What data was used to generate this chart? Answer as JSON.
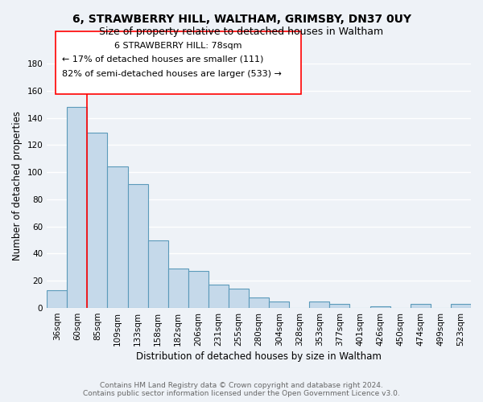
{
  "title_line1": "6, STRAWBERRY HILL, WALTHAM, GRIMSBY, DN37 0UY",
  "title_line2": "Size of property relative to detached houses in Waltham",
  "xlabel": "Distribution of detached houses by size in Waltham",
  "ylabel": "Number of detached properties",
  "bar_color": "#c5d9ea",
  "bar_edge_color": "#5b9aba",
  "categories": [
    "36sqm",
    "60sqm",
    "85sqm",
    "109sqm",
    "133sqm",
    "158sqm",
    "182sqm",
    "206sqm",
    "231sqm",
    "255sqm",
    "280sqm",
    "304sqm",
    "328sqm",
    "353sqm",
    "377sqm",
    "401sqm",
    "426sqm",
    "450sqm",
    "474sqm",
    "499sqm",
    "523sqm"
  ],
  "values": [
    13,
    148,
    129,
    104,
    91,
    50,
    29,
    27,
    17,
    14,
    8,
    5,
    0,
    5,
    3,
    0,
    1,
    0,
    3,
    0,
    3
  ],
  "ylim": [
    0,
    180
  ],
  "yticks": [
    0,
    20,
    40,
    60,
    80,
    100,
    120,
    140,
    160,
    180
  ],
  "property_line_label": "6 STRAWBERRY HILL: 78sqm",
  "annotation_smaller": "← 17% of detached houses are smaller (111)",
  "annotation_larger": "82% of semi-detached houses are larger (533) →",
  "footnote1": "Contains HM Land Registry data © Crown copyright and database right 2024.",
  "footnote2": "Contains public sector information licensed under the Open Government Licence v3.0.",
  "background_color": "#eef2f7",
  "grid_color": "#ffffff",
  "title_fontsize": 10,
  "subtitle_fontsize": 9,
  "axis_fontsize": 8.5,
  "tick_fontsize": 7.5,
  "annotation_fontsize": 8,
  "footnote_fontsize": 6.5
}
